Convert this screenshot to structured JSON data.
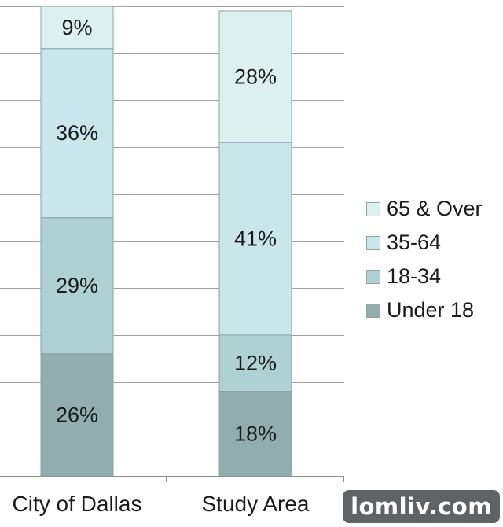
{
  "chart_data": {
    "type": "bar",
    "stacked": true,
    "categories": [
      "City of Dallas",
      "Study Area"
    ],
    "series": [
      {
        "name": "Under 18",
        "values": [
          26,
          18
        ],
        "color": "#92adae"
      },
      {
        "name": "18-34",
        "values": [
          29,
          12
        ],
        "color": "#b0d1d4"
      },
      {
        "name": "35-64",
        "values": [
          36,
          41
        ],
        "color": "#c9e6ea"
      },
      {
        "name": "65 & Over",
        "values": [
          9,
          28
        ],
        "color": "#ddf0f0"
      }
    ],
    "value_suffix": "%",
    "ylim": [
      0,
      100
    ],
    "grid": true,
    "legend_position": "right"
  },
  "watermark": {
    "text": "lomliv.com"
  }
}
